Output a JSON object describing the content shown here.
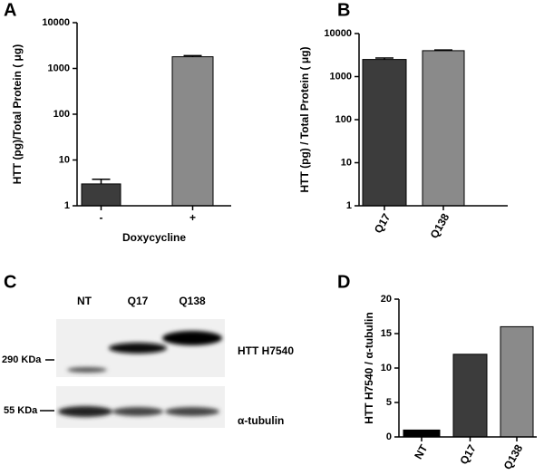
{
  "chart_data": [
    {
      "type": "bar",
      "panel": "A",
      "ylabel": "HTT (pg)/Total Protein ( μg)",
      "xlabel": "Doxycycline",
      "categories": [
        "-",
        "+"
      ],
      "values": [
        3,
        1800
      ],
      "errors": [
        0.8,
        100
      ],
      "colors": [
        "#3c3c3c",
        "#8a8a8a"
      ],
      "log_scale": true,
      "ylim": [
        1,
        10000
      ],
      "yticks": [
        1,
        10,
        100,
        1000,
        10000
      ]
    },
    {
      "type": "bar",
      "panel": "B",
      "ylabel": "HTT (pg) / Total Protein ( μg)",
      "categories": [
        "Q17",
        "Q138"
      ],
      "values": [
        2500,
        4000
      ],
      "errors": [
        200,
        150
      ],
      "colors": [
        "#3c3c3c",
        "#8a8a8a"
      ],
      "log_scale": true,
      "ylim": [
        1,
        10000
      ],
      "yticks": [
        1,
        10,
        100,
        1000,
        10000
      ]
    },
    {
      "type": "bar",
      "panel": "D",
      "ylabel": "HTT H7540 / α-tubulin",
      "categories": [
        "NT",
        "Q17",
        "Q138"
      ],
      "values": [
        1,
        12,
        16
      ],
      "colors": [
        "#000000",
        "#3c3c3c",
        "#8a8a8a"
      ],
      "log_scale": false,
      "ylim": [
        0,
        20
      ],
      "yticks": [
        0,
        5,
        10,
        15,
        20
      ]
    }
  ],
  "blot": {
    "panel": "C",
    "lanes": [
      "NT",
      "Q17",
      "Q138"
    ],
    "markers": [
      "290 KDa",
      "55 KDa"
    ],
    "bands": [
      "HTT H7540",
      "α-tubulin"
    ]
  }
}
